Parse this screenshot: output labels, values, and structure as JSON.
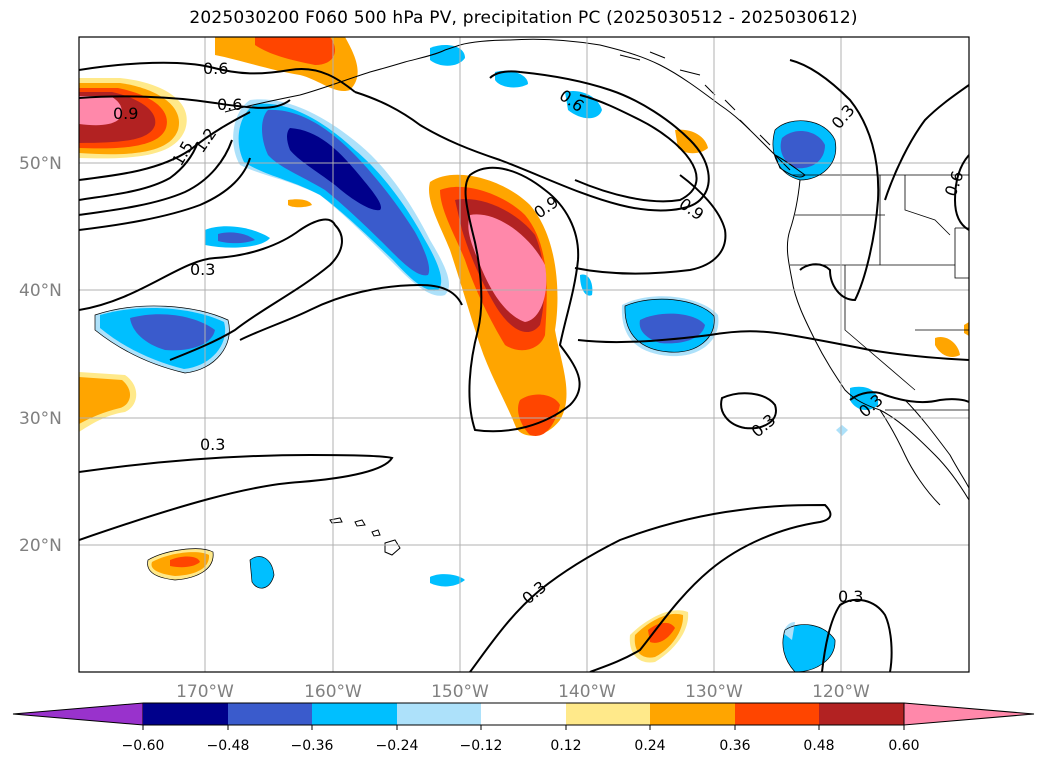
{
  "title": "2025030200 F060 500 hPa PV, precipitation PC (2025030512 - 2025030612)",
  "lat_labels": [
    "50°N",
    "40°N",
    "30°N",
    "20°N"
  ],
  "lon_labels": [
    "170°W",
    "160°W",
    "150°W",
    "140°W",
    "130°W",
    "120°W"
  ],
  "contour_labels": [
    "0.6",
    "0.6",
    "0.9",
    "1.2",
    "1.5",
    "0.6",
    "0.9",
    "0.9",
    "0.3",
    "0.3",
    "0.6",
    "0.3",
    "0.3",
    "0.3",
    "0.3",
    "0.3"
  ],
  "colorbar": {
    "ticks": [
      "−0.60",
      "−0.48",
      "−0.36",
      "−0.24",
      "−0.12",
      "0.12",
      "0.24",
      "0.36",
      "0.48",
      "0.60"
    ],
    "colors": [
      "#9932cc",
      "#00008b",
      "#3a5bcc",
      "#00bfff",
      "#ade1fa",
      "#ffffff",
      "#ffe98a",
      "#ffa500",
      "#ff4500",
      "#b22222",
      "#ff88aa"
    ]
  },
  "map": {
    "lon_range": [
      -180,
      -110
    ],
    "lat_range": [
      10,
      60
    ],
    "projection": "PlateCarree",
    "shaded_field": "precipitation PC",
    "contour_field": "500 hPa PV"
  }
}
